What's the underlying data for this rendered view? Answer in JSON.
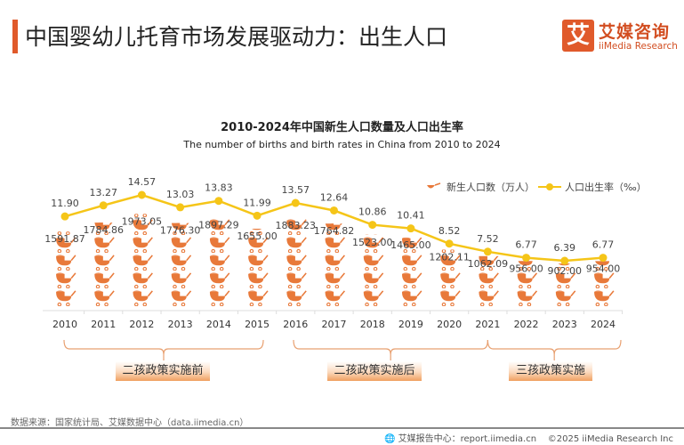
{
  "header": {
    "title": "中国婴幼儿托育市场发展驱动力：出生人口"
  },
  "logo": {
    "mark": "艾",
    "cn": "艾媒咨询",
    "en": "iiMedia Research",
    "color": "#e05a2b"
  },
  "chart_data": {
    "type": "bar+line",
    "title": "2010-2024年中国新生人口数量及人口出生率",
    "subtitle": "The number of births and birth rates in China from 2010 to 2024",
    "categories": [
      "2010",
      "2011",
      "2012",
      "2013",
      "2014",
      "2015",
      "2016",
      "2017",
      "2018",
      "2019",
      "2020",
      "2021",
      "2022",
      "2023",
      "2024"
    ],
    "series": [
      {
        "name": "新生人口数（万人）",
        "type": "pictorial-bar",
        "icon": "stroller-icon",
        "color": "#e8793a",
        "values": [
          1591.87,
          1784.86,
          1973.05,
          1776.3,
          1897.29,
          1655.0,
          1883.23,
          1764.82,
          1523.0,
          1465.0,
          1202.11,
          1062.09,
          956.0,
          902.0,
          954.0
        ]
      },
      {
        "name": "人口出生率（‰）",
        "type": "line",
        "color": "#f5c518",
        "values": [
          11.9,
          13.27,
          14.57,
          13.03,
          13.83,
          11.99,
          13.57,
          12.64,
          10.86,
          10.41,
          8.52,
          7.52,
          6.77,
          6.39,
          6.77
        ]
      }
    ],
    "legend_position": "top-right",
    "grid": false,
    "groups": [
      {
        "label": "二孩政策实施前",
        "from": "2010",
        "to": "2015"
      },
      {
        "label": "二孩政策实施后",
        "from": "2016",
        "to": "2021"
      },
      {
        "label": "三孩政策实施",
        "from": "2021",
        "to": "2024"
      }
    ]
  },
  "footer": {
    "source": "数据来源：国家统计局、艾媒数据中心（data.iimedia.cn）",
    "report_center": "艾媒报告中心：report.iimedia.cn",
    "copyright": "©2025  iiMedia Research  Inc"
  }
}
